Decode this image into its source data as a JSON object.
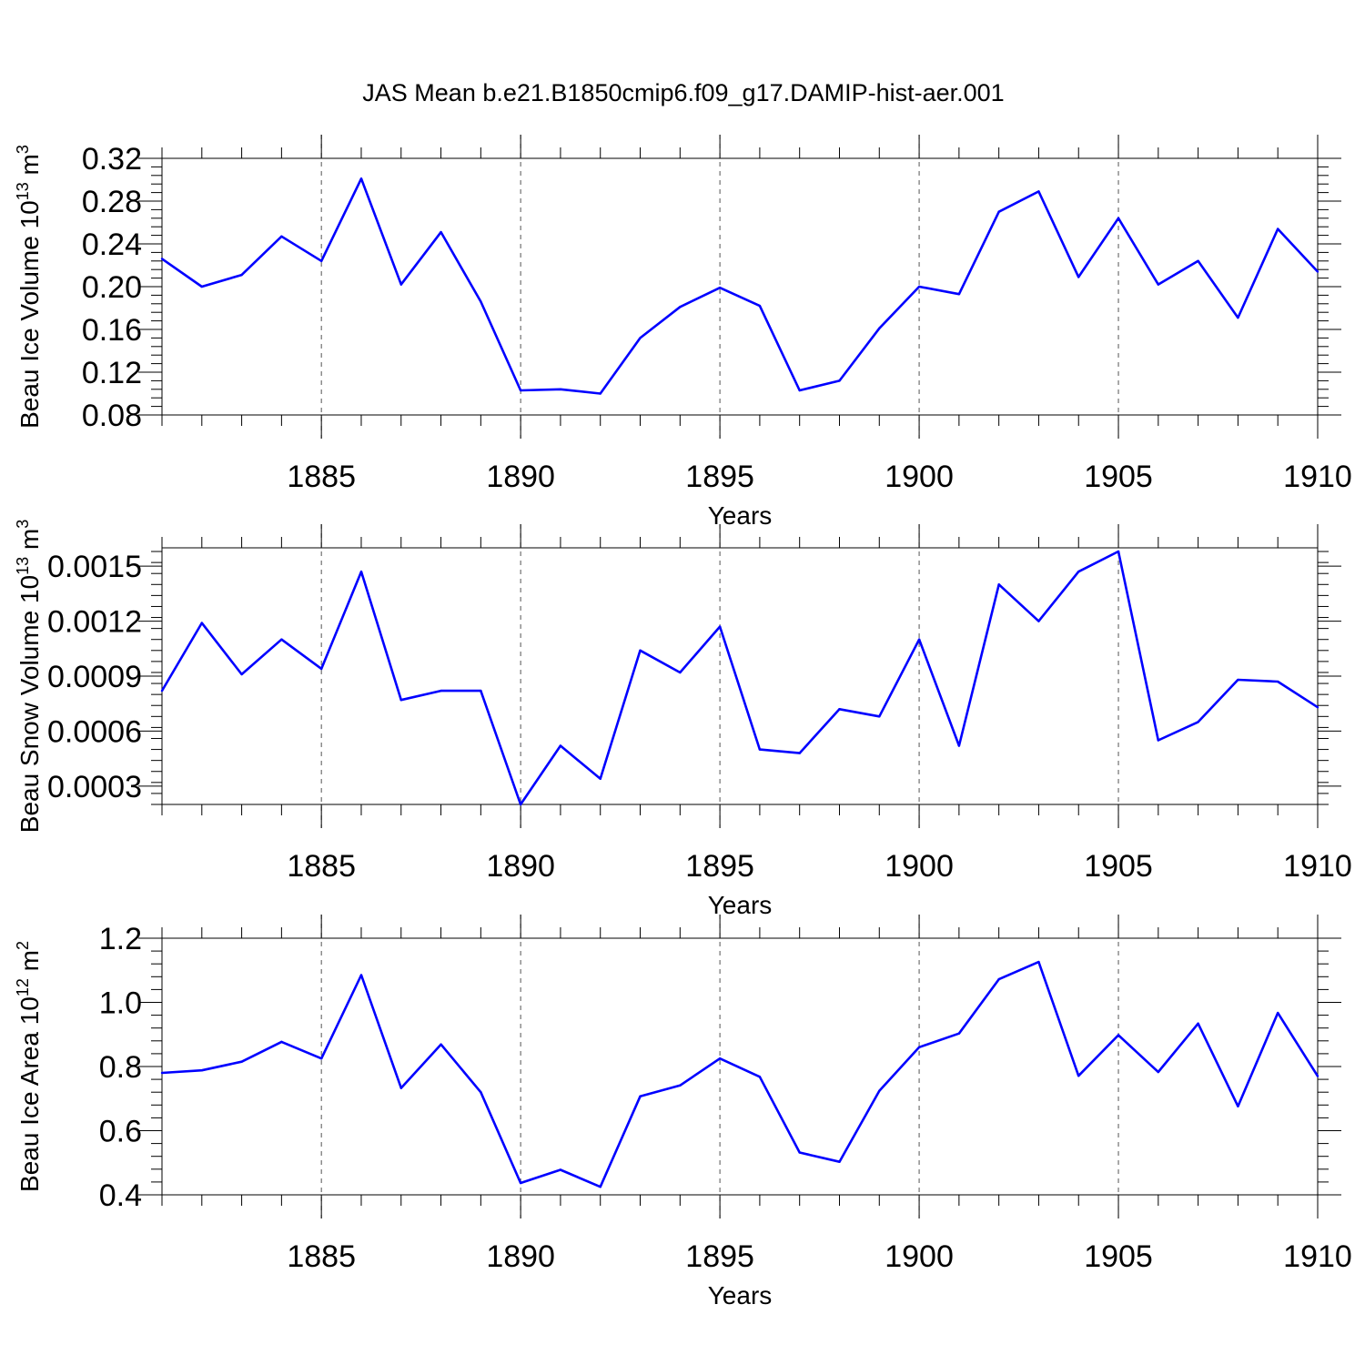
{
  "figure_title": "JAS Mean b.e21.B1850cmip6.f09_g17.DAMIP-hist-aer.001",
  "colors": {
    "series": "#0000ff",
    "grid": "#555555",
    "axis": "#000000"
  },
  "chart_data": [
    {
      "type": "line",
      "id": "ice-volume",
      "ylabel": "Beau Ice Volume",
      "ylabel_power": "10",
      "ylabel_exponent": "13",
      "ylabel_unit": "m",
      "ylabel_unit_exponent": "3",
      "xlabel": "Years",
      "xlim": [
        1881,
        1910
      ],
      "ylim": [
        0.08,
        0.32
      ],
      "yticks": [
        0.08,
        0.12,
        0.16,
        0.2,
        0.24,
        0.28,
        0.32
      ],
      "ytick_labels": [
        "0.08",
        "0.12",
        "0.16",
        "0.20",
        "0.24",
        "0.28",
        "0.32"
      ],
      "xticks": [
        1885,
        1890,
        1895,
        1900,
        1905,
        1910
      ],
      "xtick_labels": [
        "1885",
        "1890",
        "1895",
        "1900",
        "1905",
        "1910"
      ],
      "grid": "vertical dashed at major x ticks",
      "x": [
        1881,
        1882,
        1883,
        1884,
        1885,
        1886,
        1887,
        1888,
        1889,
        1890,
        1891,
        1892,
        1893,
        1894,
        1895,
        1896,
        1897,
        1898,
        1899,
        1900,
        1901,
        1902,
        1903,
        1904,
        1905,
        1906,
        1907,
        1908,
        1909,
        1910
      ],
      "values": [
        0.226,
        0.2,
        0.211,
        0.247,
        0.224,
        0.301,
        0.202,
        0.251,
        0.186,
        0.103,
        0.104,
        0.1,
        0.152,
        0.181,
        0.199,
        0.182,
        0.103,
        0.112,
        0.161,
        0.2,
        0.193,
        0.27,
        0.289,
        0.209,
        0.264,
        0.202,
        0.224,
        0.171,
        0.254,
        0.214
      ]
    },
    {
      "type": "line",
      "id": "snow-volume",
      "ylabel": "Beau Snow Volume",
      "ylabel_power": "10",
      "ylabel_exponent": "13",
      "ylabel_unit": "m",
      "ylabel_unit_exponent": "3",
      "xlabel": "Years",
      "xlim": [
        1881,
        1910
      ],
      "ylim": [
        0.0002,
        0.0016
      ],
      "yticks": [
        0.0003,
        0.0006,
        0.0009,
        0.0012,
        0.0015
      ],
      "ytick_labels": [
        "0.0003",
        "0.0006",
        "0.0009",
        "0.0012",
        "0.0015"
      ],
      "xticks": [
        1885,
        1890,
        1895,
        1900,
        1905,
        1910
      ],
      "xtick_labels": [
        "1885",
        "1890",
        "1895",
        "1900",
        "1905",
        "1910"
      ],
      "grid": "vertical dashed at major x ticks",
      "x": [
        1881,
        1882,
        1883,
        1884,
        1885,
        1886,
        1887,
        1888,
        1889,
        1890,
        1891,
        1892,
        1893,
        1894,
        1895,
        1896,
        1897,
        1898,
        1899,
        1900,
        1901,
        1902,
        1903,
        1904,
        1905,
        1906,
        1907,
        1908,
        1909,
        1910
      ],
      "values": [
        0.00082,
        0.00119,
        0.00091,
        0.0011,
        0.00094,
        0.00147,
        0.00077,
        0.00082,
        0.00082,
        0.0002,
        0.00052,
        0.00034,
        0.00104,
        0.00092,
        0.00117,
        0.0005,
        0.00048,
        0.00072,
        0.00068,
        0.0011,
        0.00052,
        0.0014,
        0.0012,
        0.00147,
        0.00158,
        0.00055,
        0.00065,
        0.00088,
        0.00087,
        0.00073
      ]
    },
    {
      "type": "line",
      "id": "ice-area",
      "ylabel": "Beau Ice Area",
      "ylabel_power": "10",
      "ylabel_exponent": "12",
      "ylabel_unit": "m",
      "ylabel_unit_exponent": "2",
      "xlabel": "Years",
      "xlim": [
        1881,
        1910
      ],
      "ylim": [
        0.4,
        1.2
      ],
      "yticks": [
        0.4,
        0.6,
        0.8,
        1.0,
        1.2
      ],
      "ytick_labels": [
        "0.4",
        "0.6",
        "0.8",
        "1.0",
        "1.2"
      ],
      "xticks": [
        1885,
        1890,
        1895,
        1900,
        1905,
        1910
      ],
      "xtick_labels": [
        "1885",
        "1890",
        "1895",
        "1900",
        "1905",
        "1910"
      ],
      "grid": "vertical dashed at major x ticks",
      "x": [
        1881,
        1882,
        1883,
        1884,
        1885,
        1886,
        1887,
        1888,
        1889,
        1890,
        1891,
        1892,
        1893,
        1894,
        1895,
        1896,
        1897,
        1898,
        1899,
        1900,
        1901,
        1902,
        1903,
        1904,
        1905,
        1906,
        1907,
        1908,
        1909,
        1910
      ],
      "values": [
        0.78,
        0.788,
        0.815,
        0.877,
        0.825,
        1.085,
        0.733,
        0.869,
        0.72,
        0.437,
        0.478,
        0.425,
        0.707,
        0.741,
        0.825,
        0.768,
        0.532,
        0.503,
        0.724,
        0.86,
        0.903,
        1.072,
        1.126,
        0.771,
        0.898,
        0.783,
        0.934,
        0.676,
        0.967,
        0.77
      ]
    }
  ]
}
